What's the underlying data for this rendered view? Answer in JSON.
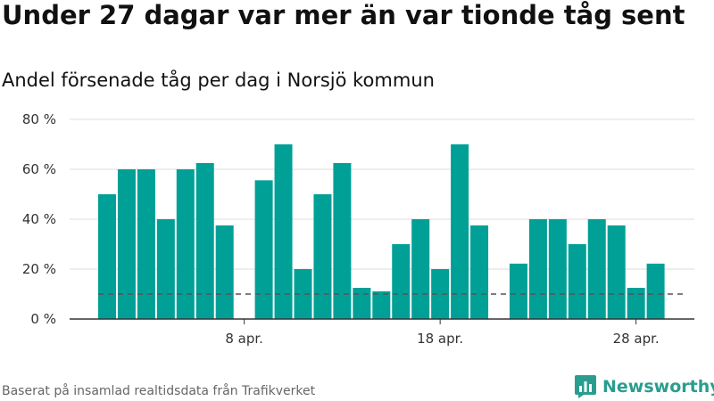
{
  "title": "Under 27 dagar var mer än var tionde tåg sent",
  "subtitle": "Andel försenade tåg per dag i Norsjö kommun",
  "source": "Baserat på insamlad realtidsdata från Trafikverket",
  "brand": {
    "name": "Newsworthy",
    "icon": "bar-chart-speech-bubble-icon",
    "color": "#2a9d8f"
  },
  "colors": {
    "bar": "#00a096",
    "reference_line": "#555555",
    "grid": "#dddddd",
    "axis": "#333333"
  },
  "chart_data": {
    "type": "bar",
    "title": "Andel försenade tåg per dag i Norsjö kommun",
    "xlabel": "",
    "ylabel": "",
    "ylim": [
      0,
      80
    ],
    "yticks": [
      0,
      20,
      40,
      60,
      80
    ],
    "ytick_labels": [
      "0 %",
      "20 %",
      "40 %",
      "60 %",
      "80 %"
    ],
    "grid": true,
    "categories": [
      "1 apr.",
      "2 apr.",
      "3 apr.",
      "4 apr.",
      "5 apr.",
      "6 apr.",
      "7 apr.",
      "8 apr.",
      "9 apr.",
      "10 apr.",
      "11 apr.",
      "12 apr.",
      "13 apr.",
      "14 apr.",
      "15 apr.",
      "16 apr.",
      "17 apr.",
      "18 apr.",
      "19 apr.",
      "20 apr.",
      "21 apr.",
      "22 apr.",
      "23 apr.",
      "24 apr.",
      "25 apr.",
      "26 apr.",
      "27 apr.",
      "28 apr.",
      "29 apr.",
      "30 apr."
    ],
    "values": [
      50,
      60,
      60,
      40,
      60,
      62.5,
      37.5,
      null,
      55.6,
      70,
      20,
      50,
      62.5,
      12.5,
      11.1,
      30,
      40,
      20,
      70,
      37.5,
      null,
      22.2,
      40,
      40,
      30,
      40,
      37.5,
      12.5,
      22.2,
      null
    ],
    "reference_line": {
      "value": 10,
      "style": "dashed",
      "label": ""
    },
    "xticks": [
      {
        "category": "8 apr.",
        "label": "8 apr."
      },
      {
        "category": "18 apr.",
        "label": "18 apr."
      },
      {
        "category": "28 apr.",
        "label": "28 apr."
      }
    ]
  }
}
